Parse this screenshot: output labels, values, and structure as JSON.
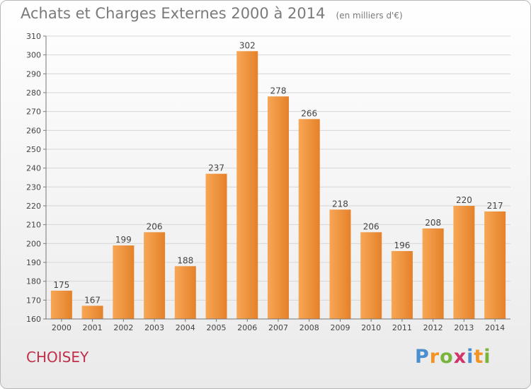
{
  "title": "Achats et Charges Externes 2000 à 2014",
  "unit_note": "(en milliers d'€)",
  "location": "CHOISEY",
  "brand": "Proxiti",
  "brand_letters": [
    {
      "ch": "P",
      "color": "#4a8fcf"
    },
    {
      "ch": "r",
      "color": "#f39322"
    },
    {
      "ch": "o",
      "color": "#79b43b"
    },
    {
      "ch": "x",
      "color": "#d1336b"
    },
    {
      "ch": "i",
      "color": "#4a8fcf"
    },
    {
      "ch": "t",
      "color": "#f39322"
    },
    {
      "ch": "i",
      "color": "#79b43b"
    }
  ],
  "colors": {
    "bar_light": "#f7a755",
    "bar_dark": "#e5812a",
    "title": "#7a7a7a",
    "location": "#c0304a"
  },
  "chart_data": {
    "type": "bar",
    "title": "Achats et Charges Externes 2000 à 2014",
    "subtitle": "(en milliers d'€)",
    "categories": [
      "2000",
      "2001",
      "2002",
      "2003",
      "2004",
      "2005",
      "2006",
      "2007",
      "2008",
      "2009",
      "2010",
      "2011",
      "2012",
      "2013",
      "2014"
    ],
    "values": [
      175,
      167,
      199,
      206,
      188,
      237,
      302,
      278,
      266,
      218,
      206,
      196,
      208,
      220,
      217
    ],
    "ylim": [
      160,
      310
    ],
    "yticks": [
      160,
      170,
      180,
      190,
      200,
      210,
      220,
      230,
      240,
      250,
      260,
      270,
      280,
      290,
      300,
      310
    ],
    "grid": true,
    "xlabel": "",
    "ylabel": ""
  }
}
